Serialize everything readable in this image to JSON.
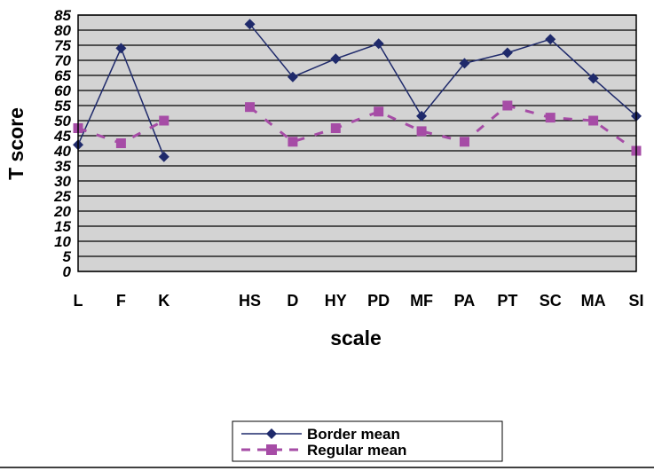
{
  "chart_data": {
    "type": "line",
    "title": "",
    "xlabel": "scale",
    "ylabel": "T score",
    "categories": [
      "L",
      "F",
      "K",
      "",
      "HS",
      "D",
      "HY",
      "PD",
      "MF",
      "PA",
      "PT",
      "SC",
      "MA",
      "SI"
    ],
    "ylim": [
      0,
      85
    ],
    "yticks": [
      0,
      5,
      10,
      15,
      20,
      25,
      30,
      35,
      40,
      45,
      50,
      55,
      60,
      65,
      70,
      75,
      80,
      85
    ],
    "grid": true,
    "legend_position": "bottom",
    "series": [
      {
        "name": "Border mean",
        "color": "#1F2A6B",
        "marker": "diamond",
        "line_style": "solid",
        "values": [
          42,
          74,
          38,
          null,
          82,
          64.5,
          70.5,
          75.5,
          51.5,
          69,
          72.5,
          77,
          64,
          51.5
        ]
      },
      {
        "name": "Regular mean",
        "color": "#A64CA6",
        "marker": "square",
        "line_style": "dashed",
        "values": [
          47.5,
          42.5,
          50,
          null,
          54.5,
          43,
          47.5,
          53,
          46.5,
          43,
          55,
          51,
          50,
          40
        ]
      }
    ]
  },
  "colors": {
    "plot_background": "#D3D3D3",
    "gridline": "#000000"
  }
}
